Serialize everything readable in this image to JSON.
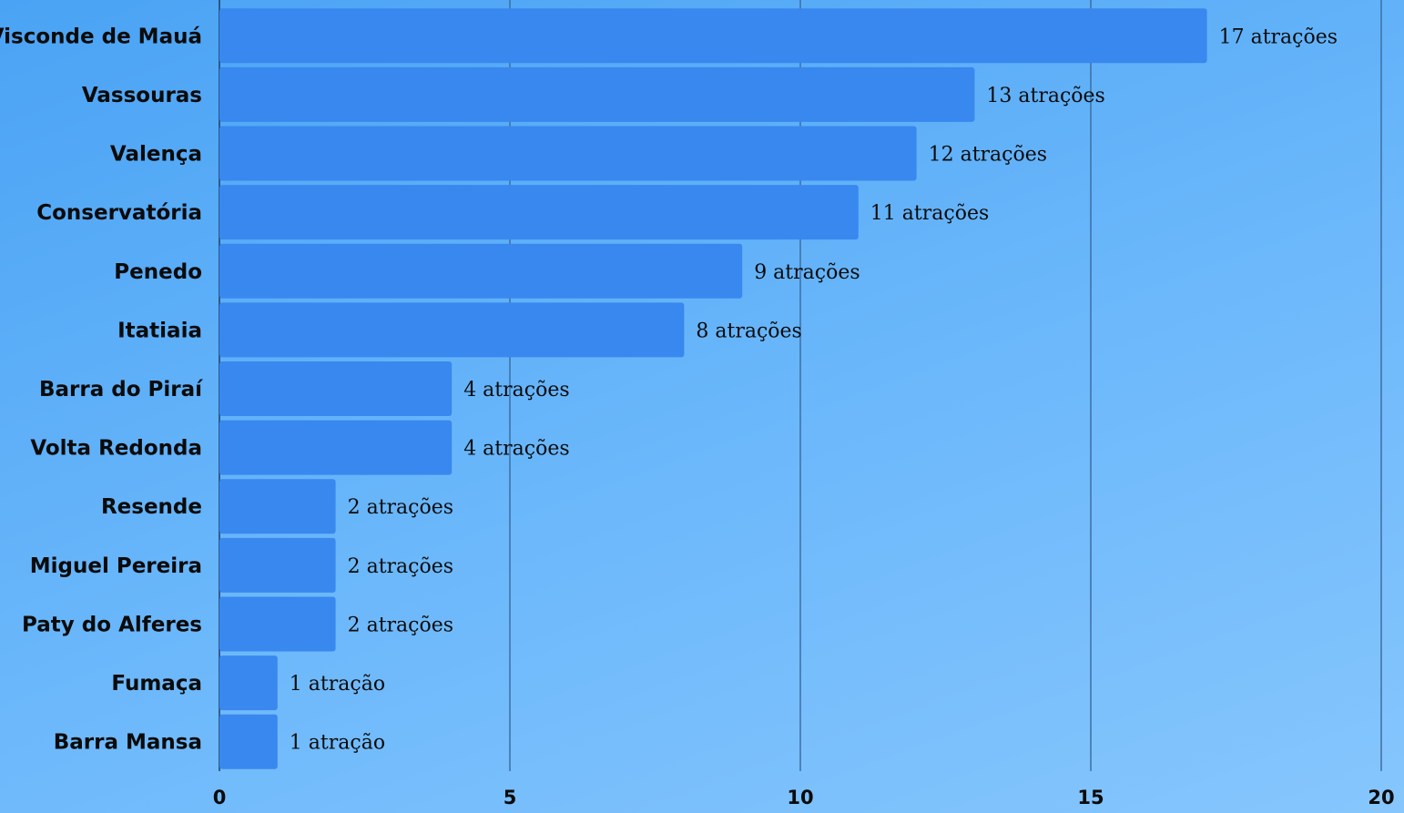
{
  "chart_data": {
    "type": "bar",
    "orientation": "horizontal",
    "title": "",
    "xlabel": "",
    "ylabel": "",
    "categories": [
      "Visconde de Mauá",
      "Vassouras",
      "Valença",
      "Conservatória",
      "Penedo",
      "Itatiaia",
      "Barra do Piraí",
      "Volta Redonda",
      "Resende",
      "Miguel Pereira",
      "Paty do Alferes",
      "Fumaça",
      "Barra Mansa"
    ],
    "values": [
      17,
      13,
      12,
      11,
      9,
      8,
      4,
      4,
      2,
      2,
      2,
      1,
      1
    ],
    "data_labels": [
      "17 atrações",
      "13 atrações",
      "12 atrações",
      "11 atrações",
      "9 atrações",
      "8 atrações",
      "4 atrações",
      "4 atrações",
      "2 atrações",
      "2 atrações",
      "2 atrações",
      "1 atração",
      "1 atração"
    ],
    "xlim": [
      0,
      20
    ],
    "xticks": [
      0,
      5,
      10,
      15,
      20
    ],
    "grid": true,
    "legend": "none",
    "colors": {
      "bar": "#3888ef",
      "gridline": "#3d6fa3",
      "text": "#0b0b0b"
    }
  }
}
